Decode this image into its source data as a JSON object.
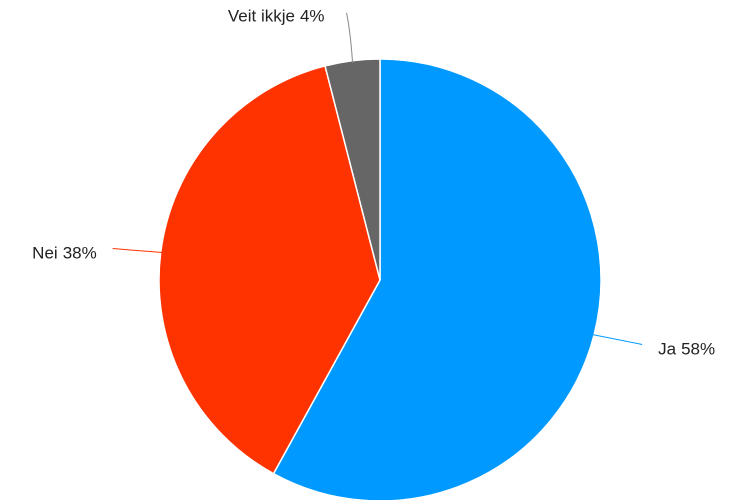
{
  "chart_data": {
    "type": "pie",
    "categories": [
      "Ja",
      "Nei",
      "Veit ikkje"
    ],
    "values": [
      58,
      38,
      4
    ],
    "value_labels": [
      "58%",
      "38%",
      "4%"
    ],
    "colors": [
      "#0099ff",
      "#ff3300",
      "#666666"
    ]
  }
}
